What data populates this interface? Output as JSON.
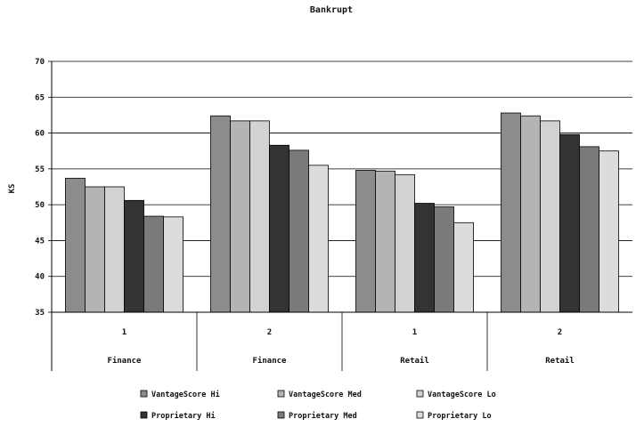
{
  "chart_data": {
    "type": "bar",
    "title": "Bankrupt",
    "ylabel": "KS",
    "xlabel": "",
    "ylim": [
      35,
      70
    ],
    "yticks": [
      35,
      40,
      45,
      50,
      55,
      60,
      65,
      70
    ],
    "grid": true,
    "legend_position": "bottom",
    "categories": [
      {
        "label": "1",
        "group": "Finance"
      },
      {
        "label": "2",
        "group": "Finance"
      },
      {
        "label": "1",
        "group": "Retail"
      },
      {
        "label": "2",
        "group": "Retail"
      }
    ],
    "series": [
      {
        "name": "VantageScore Hi",
        "color": "#8c8c8c",
        "values": [
          53.7,
          62.4,
          54.8,
          62.8
        ]
      },
      {
        "name": "VantageScore Med",
        "color": "#b4b4b4",
        "values": [
          52.5,
          61.7,
          54.7,
          62.4
        ]
      },
      {
        "name": "VantageScore Lo",
        "color": "#d2d2d2",
        "values": [
          52.5,
          61.7,
          54.2,
          61.7
        ]
      },
      {
        "name": "Proprietary Hi",
        "color": "#333333",
        "values": [
          50.6,
          58.3,
          50.2,
          59.8
        ]
      },
      {
        "name": "Proprietary Med",
        "color": "#7a7a7a",
        "values": [
          48.4,
          57.6,
          49.7,
          58.1
        ]
      },
      {
        "name": "Proprietary Lo",
        "color": "#dcdcdc",
        "values": [
          48.3,
          55.5,
          47.5,
          57.5
        ]
      }
    ]
  }
}
